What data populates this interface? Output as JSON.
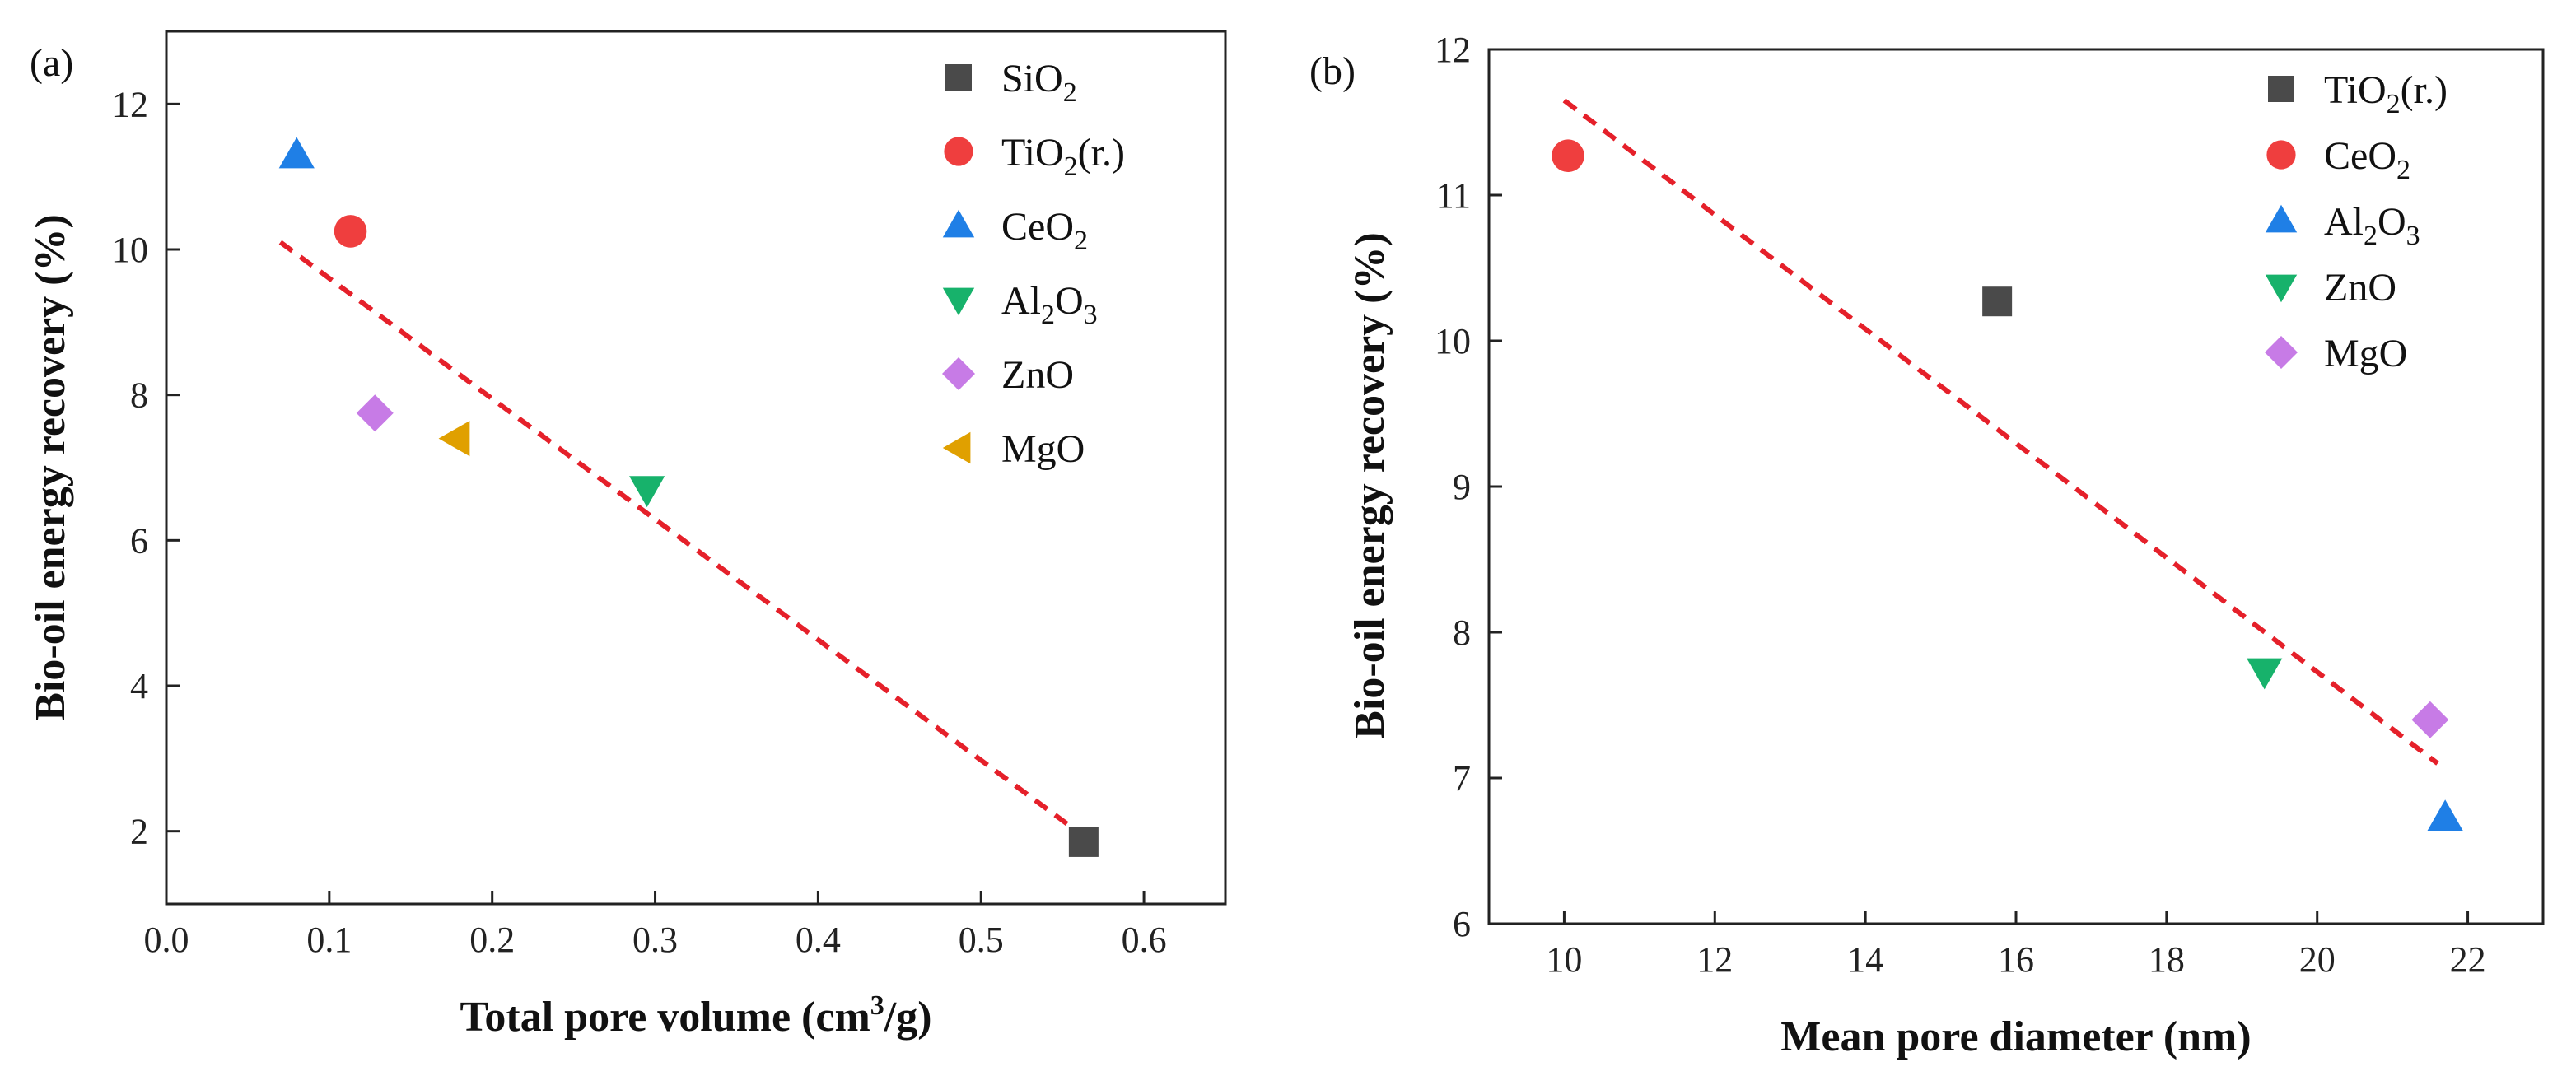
{
  "colors": {
    "SiO2": "#4a4a4a",
    "TiO2(r.)": "#ef3e3e",
    "CeO2": "#1f7fe6",
    "Al2O3": "#17b26b",
    "ZnO": "#c77be6",
    "MgO": "#e0a000",
    "fit": "#e5202a",
    "axis": "#222222"
  },
  "chart_data": [
    {
      "panel": "(a)",
      "type": "scatter",
      "xlabel": "Total pore volume (cm3/g)",
      "xlabel_parts": {
        "pre": "Total pore volume (cm",
        "sup": "3",
        "post": "/g)"
      },
      "ylabel": "Bio-oil energy recovery (%)",
      "xlim": [
        0.0,
        0.65
      ],
      "ylim": [
        1.0,
        13.0
      ],
      "xticks": [
        "0.0",
        "0.1",
        "0.2",
        "0.3",
        "0.4",
        "0.5",
        "0.6"
      ],
      "yticks": [
        "2",
        "4",
        "6",
        "8",
        "10",
        "12"
      ],
      "xtick_values": [
        0.0,
        0.1,
        0.2,
        0.3,
        0.4,
        0.5,
        0.6
      ],
      "ytick_values": [
        2,
        4,
        6,
        8,
        10,
        12
      ],
      "fit_line": {
        "x": [
          0.07,
          0.565
        ],
        "y": [
          10.1,
          1.9
        ],
        "style": "dashed"
      },
      "series": [
        {
          "name": "SiO2",
          "base": "SiO",
          "sub": "2",
          "tail": "",
          "marker": "square",
          "color": "#4a4a4a",
          "x": 0.563,
          "y": 1.85
        },
        {
          "name": "TiO2(r.)",
          "base": "TiO",
          "sub": "2",
          "tail": "(r.)",
          "marker": "circle",
          "color": "#ef3e3e",
          "x": 0.113,
          "y": 10.25
        },
        {
          "name": "CeO2",
          "base": "CeO",
          "sub": "2",
          "tail": "",
          "marker": "triangle-up",
          "color": "#1f7fe6",
          "x": 0.08,
          "y": 11.3
        },
        {
          "name": "Al2O3",
          "base": "Al",
          "sub": "2",
          "tail": "O3",
          "marker": "triangle-down",
          "color": "#17b26b",
          "x": 0.295,
          "y": 6.7
        },
        {
          "name": "ZnO",
          "base": "ZnO",
          "sub": "",
          "tail": "",
          "marker": "diamond",
          "color": "#c77be6",
          "x": 0.128,
          "y": 7.75
        },
        {
          "name": "MgO",
          "base": "MgO",
          "sub": "",
          "tail": "",
          "marker": "triangle-left",
          "color": "#e0a000",
          "x": 0.178,
          "y": 7.4
        }
      ]
    },
    {
      "panel": "(b)",
      "type": "scatter",
      "xlabel": "Mean pore diameter (nm)",
      "ylabel": "Bio-oil energy recovery (%)",
      "xlim": [
        9.0,
        23.0
      ],
      "ylim": [
        6.0,
        12.0
      ],
      "xticks": [
        "10",
        "12",
        "14",
        "16",
        "18",
        "20",
        "22"
      ],
      "yticks": [
        "6",
        "7",
        "8",
        "9",
        "10",
        "11",
        "12"
      ],
      "xtick_values": [
        10,
        12,
        14,
        16,
        18,
        20,
        22
      ],
      "ytick_values": [
        6,
        7,
        8,
        9,
        10,
        11,
        12
      ],
      "fit_line": {
        "x": [
          10.0,
          21.6
        ],
        "y": [
          11.65,
          7.1
        ],
        "style": "dashed"
      },
      "series": [
        {
          "name": "TiO2(r.)",
          "base": "TiO",
          "sub": "2",
          "tail": "(r.)",
          "marker": "square",
          "color": "#4a4a4a",
          "x": 15.75,
          "y": 10.27
        },
        {
          "name": "CeO2",
          "base": "CeO",
          "sub": "2",
          "tail": "",
          "marker": "circle",
          "color": "#ef3e3e",
          "x": 10.05,
          "y": 11.27
        },
        {
          "name": "Al2O3",
          "base": "Al",
          "sub": "2",
          "tail": "O3",
          "marker": "triangle-up",
          "color": "#1f7fe6",
          "x": 21.7,
          "y": 6.73
        },
        {
          "name": "ZnO",
          "base": "ZnO",
          "sub": "",
          "tail": "",
          "marker": "triangle-down",
          "color": "#17b26b",
          "x": 19.3,
          "y": 7.73
        },
        {
          "name": "MgO",
          "base": "MgO",
          "sub": "",
          "tail": "",
          "marker": "diamond",
          "color": "#c77be6",
          "x": 21.5,
          "y": 7.4
        }
      ]
    }
  ]
}
